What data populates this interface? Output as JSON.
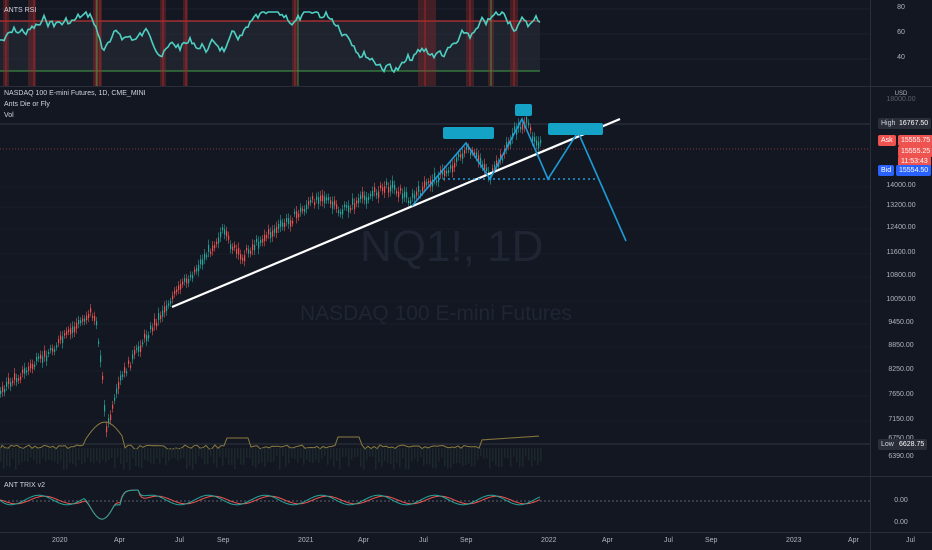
{
  "rsi_pane": {
    "label": "ANTS RSI",
    "ticks": [
      "80",
      "60",
      "40"
    ],
    "color": "#4dd0c2",
    "band_color": "#9c2a2a"
  },
  "main_pane": {
    "symbol_line": "NASDAQ 100 E-mini Futures, 1D, CME_MINI",
    "indicator_1": "Ants Die or Fly",
    "indicator_2": "Vol",
    "watermark_symbol": "NQ1!, 1D",
    "watermark_name": "NASDAQ 100 E-mini Futures",
    "currency": "USD",
    "price_ticks": [
      "14000.00",
      "13200.00",
      "12400.00",
      "11600.00",
      "10800.00",
      "10050.00",
      "9450.00",
      "8850.00",
      "8250.00",
      "7650.00",
      "7150.00",
      "6750.00",
      "6390.00"
    ],
    "top_tick_partial": "18000.00",
    "high": {
      "label": "High",
      "value": "16767.50"
    },
    "ask": {
      "label": "Ask",
      "value": "15555.75"
    },
    "last": {
      "value": "15555.25",
      "countdown": "11:53:43"
    },
    "bid": {
      "label": "Bid",
      "value": "15554.50"
    },
    "low": {
      "label": "Low",
      "value": "6628.75"
    },
    "up_color": "#26a69a",
    "down_color": "#ef5350",
    "trendline_color": "#ffffff",
    "pattern_color": "#1e9bd7"
  },
  "trix_pane": {
    "label": "ANT TRIX v2",
    "tick": "0.00",
    "tick_bottom": "0.00"
  },
  "time_axis": [
    "2020",
    "Apr",
    "Jul",
    "Sep",
    "2021",
    "Apr",
    "Jul",
    "Sep",
    "2022",
    "Apr",
    "Jul",
    "Sep",
    "2023",
    "Apr",
    "Jul"
  ]
}
